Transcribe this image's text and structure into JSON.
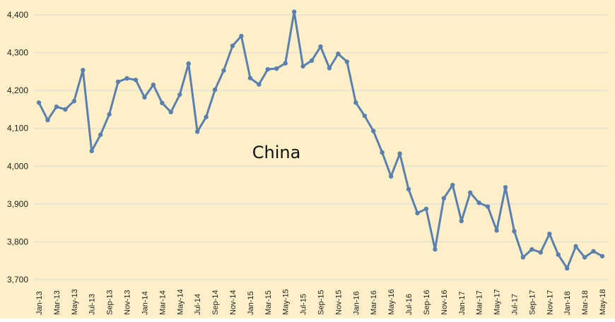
{
  "chart_data": {
    "type": "line",
    "title": "China",
    "xlabel": "",
    "ylabel": "",
    "ylim": [
      3700,
      4400
    ],
    "yticks": [
      "3,700",
      "3,800",
      "3,900",
      "4,000",
      "4,100",
      "4,200",
      "4,300",
      "4,400"
    ],
    "grid": "horizontal",
    "colors": {
      "line": "#5b7fae",
      "background": "#fdf0c8",
      "grid": "#d9d9d9"
    },
    "x": [
      "Jan-13",
      "Feb-13",
      "Mar-13",
      "Apr-13",
      "May-13",
      "Jun-13",
      "Jul-13",
      "Aug-13",
      "Sep-13",
      "Oct-13",
      "Nov-13",
      "Dec-13",
      "Jan-14",
      "Feb-14",
      "Mar-14",
      "Apr-14",
      "May-14",
      "Jun-14",
      "Jul-14",
      "Aug-14",
      "Sep-14",
      "Oct-14",
      "Nov-14",
      "Dec-14",
      "Jan-15",
      "Feb-15",
      "Mar-15",
      "Apr-15",
      "May-15",
      "Jun-15",
      "Jul-15",
      "Aug-15",
      "Sep-15",
      "Oct-15",
      "Nov-15",
      "Dec-15",
      "Jan-16",
      "Feb-16",
      "Mar-16",
      "Apr-16",
      "May-16",
      "Jun-16",
      "Jul-16",
      "Aug-16",
      "Sep-16",
      "Oct-16",
      "Nov-16",
      "Dec-16",
      "Jan-17",
      "Feb-17",
      "Mar-17",
      "Apr-17",
      "May-17",
      "Jun-17",
      "Jul-17",
      "Aug-17",
      "Sep-17",
      "Oct-17",
      "Nov-17",
      "Dec-17",
      "Jan-18",
      "Feb-18",
      "Mar-18",
      "Apr-18",
      "May-18"
    ],
    "xtick_labels": [
      "Jan-13",
      "Mar-13",
      "May-13",
      "Jul-13",
      "Sep-13",
      "Nov-13",
      "Jan-14",
      "Mar-14",
      "May-14",
      "Jul-14",
      "Sep-14",
      "Nov-14",
      "Jan-15",
      "Mar-15",
      "May-15",
      "Jul-15",
      "Sep-15",
      "Nov-15",
      "Jan-16",
      "Mar-16",
      "May-16",
      "Jul-16",
      "Sep-16",
      "Nov-16",
      "Jan-17",
      "Mar-17",
      "May-17",
      "Jul-17",
      "Sep-17",
      "Nov-17",
      "Jan-18",
      "Mar-18",
      "May-18"
    ],
    "series": [
      {
        "values": [
          4168,
          4122,
          4157,
          4150,
          4172,
          4254,
          4040,
          4083,
          4137,
          4223,
          4232,
          4228,
          4182,
          4215,
          4167,
          4143,
          4189,
          4271,
          4091,
          4130,
          4202,
          4253,
          4318,
          4344,
          4233,
          4216,
          4256,
          4258,
          4272,
          4408,
          4264,
          4279,
          4316,
          4259,
          4297,
          4276,
          4168,
          4133,
          4093,
          4036,
          3973,
          4033,
          3939,
          3876,
          3887,
          3780,
          3915,
          3950,
          3855,
          3930,
          3903,
          3893,
          3830,
          3944,
          3828,
          3759,
          3780,
          3772,
          3821,
          3766,
          3730,
          3788,
          3759,
          3775,
          3762
        ]
      }
    ]
  }
}
